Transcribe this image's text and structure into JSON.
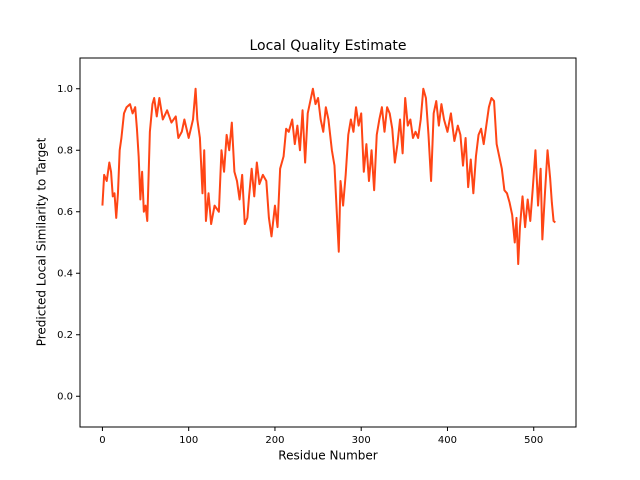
{
  "chart_data": {
    "type": "line",
    "title": "Local Quality Estimate",
    "xlabel": "Residue Number",
    "ylabel": "Predicted Local Similarity to Target",
    "color": "#ff4515",
    "xlim": [
      -26,
      549
    ],
    "ylim": [
      -0.1,
      1.1
    ],
    "xticks": [
      0,
      100,
      200,
      300,
      400,
      500
    ],
    "yticks": [
      {
        "value": 0,
        "label": "0.0"
      },
      0.2,
      0.4,
      0.6,
      0.8,
      {
        "value": 1,
        "label": "1.0"
      }
    ],
    "grid": false,
    "x": [
      0,
      2,
      5,
      8,
      10,
      12,
      14,
      16,
      18,
      20,
      22,
      25,
      28,
      32,
      35,
      38,
      40,
      42,
      44,
      46,
      48,
      50,
      52,
      55,
      58,
      60,
      63,
      66,
      70,
      75,
      80,
      85,
      88,
      92,
      95,
      100,
      105,
      108,
      110,
      113,
      116,
      118,
      120,
      123,
      126,
      130,
      135,
      138,
      141,
      144,
      147,
      150,
      153,
      156,
      159,
      162,
      165,
      168,
      170,
      173,
      176,
      179,
      182,
      186,
      190,
      193,
      196,
      200,
      203,
      206,
      210,
      213,
      216,
      220,
      223,
      226,
      229,
      232,
      235,
      238,
      241,
      244,
      247,
      250,
      253,
      256,
      259,
      262,
      266,
      269,
      272,
      274,
      276,
      279,
      282,
      285,
      288,
      291,
      294,
      297,
      300,
      303,
      306,
      309,
      312,
      315,
      318,
      321,
      324,
      327,
      330,
      333,
      336,
      339,
      342,
      345,
      348,
      351,
      354,
      357,
      360,
      363,
      366,
      369,
      372,
      375,
      378,
      381,
      384,
      387,
      390,
      393,
      396,
      400,
      404,
      408,
      412,
      415,
      418,
      421,
      424,
      427,
      430,
      433,
      436,
      439,
      442,
      445,
      448,
      451,
      454,
      457,
      460,
      463,
      466,
      469,
      472,
      475,
      478,
      480,
      482,
      484,
      487,
      490,
      493,
      496,
      499,
      502,
      505,
      508,
      510,
      513,
      516,
      519,
      521,
      523,
      525
    ],
    "values": [
      0.62,
      0.72,
      0.7,
      0.76,
      0.73,
      0.65,
      0.66,
      0.58,
      0.66,
      0.8,
      0.84,
      0.92,
      0.94,
      0.95,
      0.92,
      0.94,
      0.87,
      0.78,
      0.64,
      0.73,
      0.6,
      0.62,
      0.57,
      0.86,
      0.95,
      0.97,
      0.91,
      0.97,
      0.9,
      0.93,
      0.89,
      0.91,
      0.84,
      0.86,
      0.9,
      0.84,
      0.9,
      1.0,
      0.9,
      0.84,
      0.66,
      0.8,
      0.57,
      0.66,
      0.56,
      0.62,
      0.6,
      0.8,
      0.73,
      0.85,
      0.8,
      0.89,
      0.73,
      0.7,
      0.64,
      0.72,
      0.56,
      0.58,
      0.65,
      0.74,
      0.65,
      0.76,
      0.69,
      0.72,
      0.7,
      0.58,
      0.52,
      0.62,
      0.55,
      0.74,
      0.78,
      0.87,
      0.86,
      0.9,
      0.82,
      0.88,
      0.8,
      0.93,
      0.76,
      0.92,
      0.96,
      1.0,
      0.95,
      0.97,
      0.9,
      0.86,
      0.94,
      0.9,
      0.8,
      0.75,
      0.58,
      0.47,
      0.7,
      0.62,
      0.72,
      0.85,
      0.9,
      0.86,
      0.94,
      0.88,
      0.92,
      0.73,
      0.82,
      0.7,
      0.8,
      0.67,
      0.85,
      0.9,
      0.94,
      0.86,
      0.94,
      0.92,
      0.87,
      0.76,
      0.82,
      0.9,
      0.79,
      0.97,
      0.88,
      0.9,
      0.84,
      0.86,
      0.84,
      0.9,
      1.0,
      0.97,
      0.85,
      0.7,
      0.92,
      0.96,
      0.88,
      0.95,
      0.9,
      0.86,
      0.92,
      0.83,
      0.88,
      0.85,
      0.75,
      0.84,
      0.68,
      0.77,
      0.66,
      0.78,
      0.85,
      0.87,
      0.82,
      0.88,
      0.94,
      0.97,
      0.96,
      0.82,
      0.78,
      0.74,
      0.67,
      0.66,
      0.63,
      0.59,
      0.5,
      0.58,
      0.43,
      0.55,
      0.65,
      0.55,
      0.64,
      0.57,
      0.68,
      0.8,
      0.62,
      0.74,
      0.51,
      0.66,
      0.8,
      0.71,
      0.63,
      0.57,
      0.565
    ]
  }
}
